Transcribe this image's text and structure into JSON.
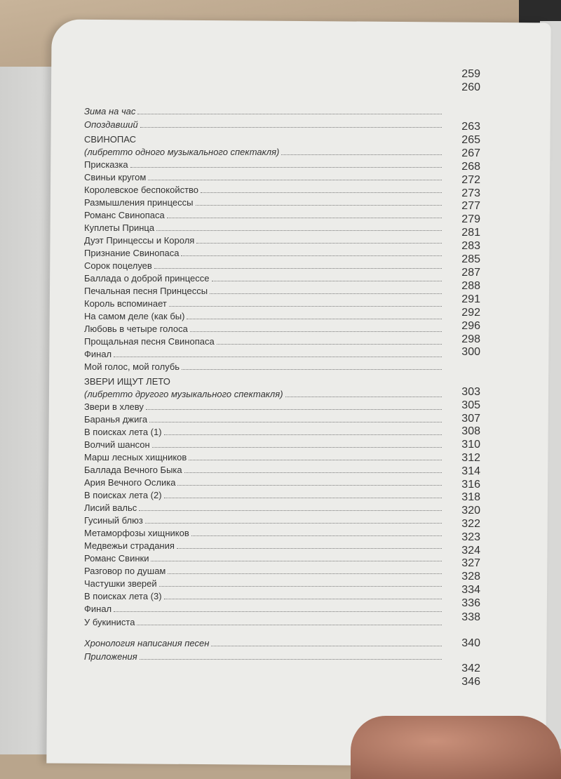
{
  "toc": {
    "group_a": [
      {
        "text": "Зима на час",
        "style": "it"
      },
      {
        "text": "Опоздавший",
        "style": "it"
      }
    ],
    "group_b": [
      {
        "text": "СВИНОПАС",
        "style": "title"
      },
      {
        "text": "(либретто одного музыкального спектакля)",
        "style": "it"
      },
      {
        "text": "Присказка"
      },
      {
        "text": "Свиньи кругом"
      },
      {
        "text": "Королевское беспокойство"
      },
      {
        "text": "Размышления принцессы"
      },
      {
        "text": "Романс Свинопаса"
      },
      {
        "text": "Куплеты Принца"
      },
      {
        "text": "Дуэт Принцессы и Короля"
      },
      {
        "text": "Признание Свинопаса"
      },
      {
        "text": "Сорок поцелуев"
      },
      {
        "text": "Баллада о доброй принцессе"
      },
      {
        "text": "Печальная песня Принцессы"
      },
      {
        "text": "Король вспоминает"
      },
      {
        "text": "На самом деле (как бы)"
      },
      {
        "text": "Любовь в четыре голоса"
      },
      {
        "text": "Прощальная песня Свинопаса"
      },
      {
        "text": "Финал"
      },
      {
        "text": "Мой голос, мой голубь"
      }
    ],
    "group_c": [
      {
        "text": "ЗВЕРИ ИЩУТ ЛЕТО",
        "style": "title"
      },
      {
        "text": "(либретто другого музыкального спектакля)",
        "style": "it"
      },
      {
        "text": "Звери в хлеву"
      },
      {
        "text": "Баранья джига"
      },
      {
        "text": "В поисках лета (1)"
      },
      {
        "text": "Волчий шансон"
      },
      {
        "text": "Марш лесных хищников"
      },
      {
        "text": "Баллада Вечного Быка"
      },
      {
        "text": "Ария Вечного Ослика"
      },
      {
        "text": "В поисках лета (2)"
      },
      {
        "text": "Лисий вальс"
      },
      {
        "text": "Гусиный блюз"
      },
      {
        "text": "Метаморфозы хищников"
      },
      {
        "text": "Медвежьи страдания"
      },
      {
        "text": "Романс Свинки"
      },
      {
        "text": "Разговор по душам"
      },
      {
        "text": "Частушки зверей"
      },
      {
        "text": "В поисках лета (3)"
      },
      {
        "text": "Финал"
      }
    ],
    "group_d": [
      {
        "text": "У букиниста"
      }
    ],
    "group_e": [
      {
        "text": "Хронология написания песен",
        "style": "it"
      },
      {
        "text": "Приложения",
        "style": "it"
      }
    ],
    "numbers_a": [
      "259",
      "260"
    ],
    "numbers_b": [
      "263",
      "265",
      "267",
      "268",
      "272",
      "273",
      "277",
      "279",
      "281",
      "283",
      "285",
      "287",
      "288",
      "291",
      "292",
      "296",
      "298",
      "300"
    ],
    "numbers_c": [
      "303",
      "305",
      "307",
      "308",
      "310",
      "312",
      "314",
      "316",
      "318",
      "320",
      "322",
      "323",
      "324",
      "327",
      "328",
      "334",
      "336"
    ],
    "numbers_d": [
      "338"
    ],
    "numbers_e": [
      "340"
    ],
    "numbers_f": [
      "342",
      "346"
    ]
  }
}
